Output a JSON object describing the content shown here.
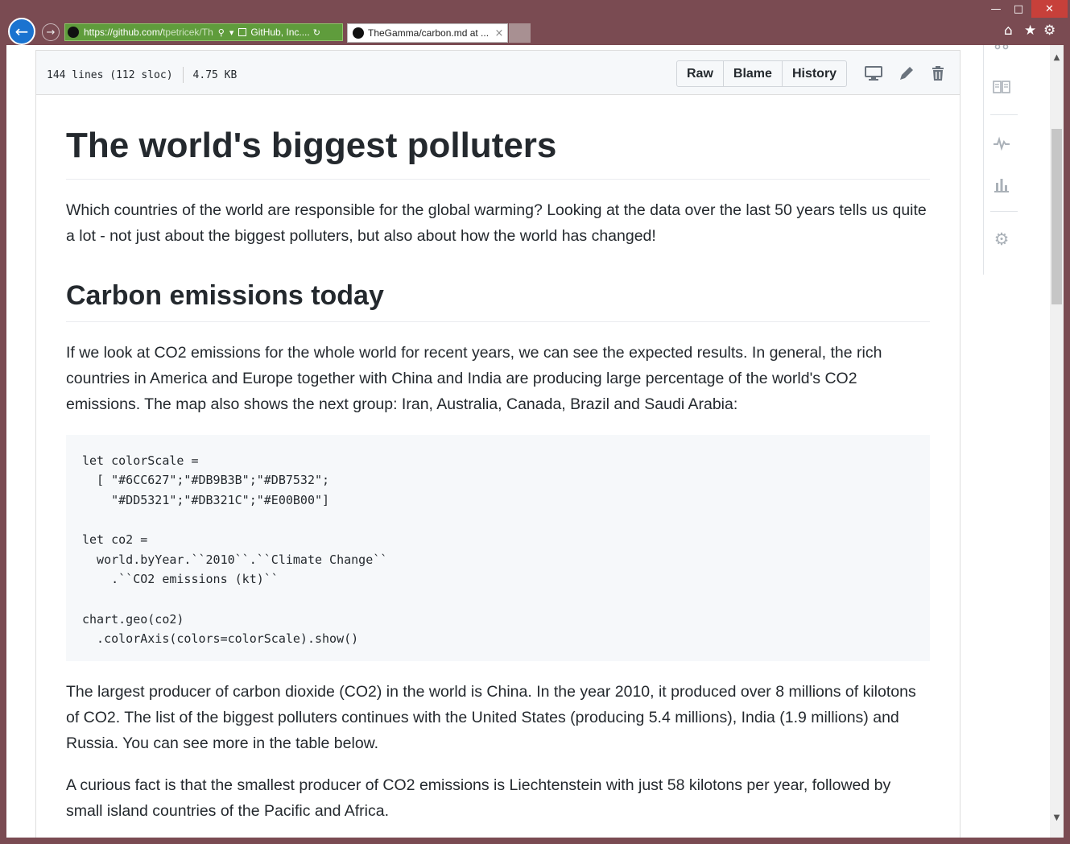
{
  "browser": {
    "url_host": "https://github.com/",
    "url_path": "tpetricek/Th",
    "site_identity": "GitHub, Inc....",
    "tab_title": "TheGamma/carbon.md at ...",
    "tab_close": "×",
    "back_glyph": "←",
    "forward_glyph": "→",
    "search_glyph": "⚲",
    "dropdown_glyph": "▾",
    "refresh_glyph": "↻",
    "window": {
      "minimize": "—",
      "maximize": "□",
      "close": "✕"
    },
    "toolbar_icons": [
      "home-icon",
      "star-icon",
      "gear-icon"
    ],
    "home_glyph": "⌂",
    "star_glyph": "★",
    "gear_glyph": "⚙",
    "accent_color": "#7a4b52",
    "address_color": "#5f9c3c"
  },
  "file_header": {
    "lines": "144 lines (112 sloc)",
    "size": "4.75 KB",
    "buttons": {
      "raw": "Raw",
      "blame": "Blame",
      "history": "History"
    },
    "icons": [
      "desktop-icon",
      "pencil-icon",
      "trash-icon"
    ]
  },
  "sidebar": {
    "icons": [
      "pull-request-icon",
      "book-icon",
      "pulse-icon",
      "graph-icon",
      "gear-icon"
    ]
  },
  "content": {
    "title": "The world's biggest polluters",
    "intro": "Which countries of the world are responsible for the global warming? Looking at the data over the last 50 years tells us quite a lot - not just about the biggest polluters, but also about how the world has changed!",
    "section_heading": "Carbon emissions today",
    "para1": "If we look at CO2 emissions for the whole world for recent years, we can see the expected results. In general, the rich countries in America and Europe together with China and India are producing large percentage of the world's CO2 emissions. The map also shows the next group: Iran, Australia, Canada, Brazil and Saudi Arabia:",
    "code": "let colorScale =\n  [ \"#6CC627\";\"#DB9B3B\";\"#DB7532\";\n    \"#DD5321\";\"#DB321C\";\"#E00B00\"]\n\nlet co2 =\n  world.byYear.``2010``.``Climate Change``\n    .``CO2 emissions (kt)``\n\nchart.geo(co2)\n  .colorAxis(colors=colorScale).show()",
    "para2": "The largest producer of carbon dioxide (CO2) in the world is China. In the year 2010, it produced over 8 millions of kilotons of CO2. The list of the biggest polluters continues with the United States (producing 5.4 millions), India (1.9 millions) and Russia. You can see more in the table below.",
    "para3": "A curious fact is that the smallest producer of CO2 emissions is Liechtenstein with just 58 kilotons per year, followed by small island countries of the Pacific and Africa."
  },
  "scroll": {
    "up_glyph": "▲",
    "down_glyph": "▼"
  }
}
